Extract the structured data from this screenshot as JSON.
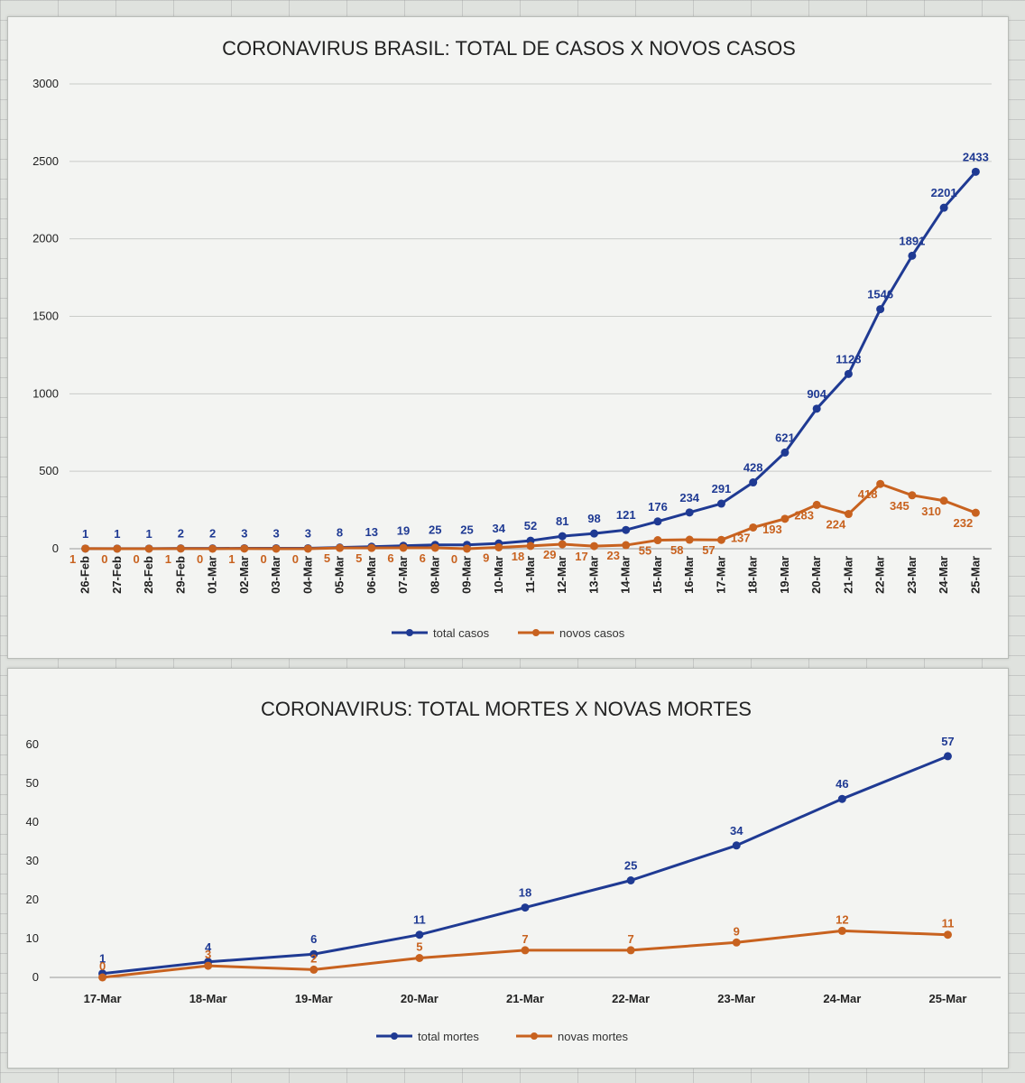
{
  "colors": {
    "total": "#1f3a93",
    "novos": "#c8621f"
  },
  "chart_data": [
    {
      "type": "line",
      "title": "CORONAVIRUS BRASIL: TOTAL DE CASOS X NOVOS CASOS",
      "xlabel": "",
      "ylabel": "",
      "ylim": [
        0,
        3000
      ],
      "yticks": [
        0,
        500,
        1000,
        1500,
        2000,
        2500,
        3000
      ],
      "grid": true,
      "legend_position": "bottom",
      "categories": [
        "26-Feb",
        "27-Feb",
        "28-Feb",
        "29-Feb",
        "01-Mar",
        "02-Mar",
        "03-Mar",
        "04-Mar",
        "05-Mar",
        "06-Mar",
        "07-Mar",
        "08-Mar",
        "09-Mar",
        "10-Mar",
        "11-Mar",
        "12-Mar",
        "13-Mar",
        "14-Mar",
        "15-Mar",
        "16-Mar",
        "17-Mar",
        "18-Mar",
        "19-Mar",
        "20-Mar",
        "21-Mar",
        "22-Mar",
        "23-Mar",
        "24-Mar",
        "25-Mar"
      ],
      "series": [
        {
          "name": "total casos",
          "color": "#1f3a93",
          "values": [
            1,
            1,
            1,
            2,
            2,
            3,
            3,
            3,
            8,
            13,
            19,
            25,
            25,
            34,
            52,
            81,
            98,
            121,
            176,
            234,
            291,
            428,
            621,
            904,
            1128,
            1546,
            1891,
            2201,
            2433
          ]
        },
        {
          "name": "novos casos",
          "color": "#c8621f",
          "values": [
            1,
            0,
            0,
            1,
            0,
            1,
            0,
            0,
            5,
            5,
            6,
            6,
            0,
            9,
            18,
            29,
            17,
            23,
            55,
            58,
            57,
            137,
            193,
            283,
            224,
            418,
            345,
            310,
            232
          ]
        }
      ]
    },
    {
      "type": "line",
      "title": "CORONAVIRUS: TOTAL MORTES X NOVAS MORTES",
      "xlabel": "",
      "ylabel": "",
      "ylim": [
        0,
        60
      ],
      "yticks": [
        0,
        10,
        20,
        30,
        40,
        50,
        60
      ],
      "grid": false,
      "legend_position": "bottom",
      "categories": [
        "17-Mar",
        "18-Mar",
        "19-Mar",
        "20-Mar",
        "21-Mar",
        "22-Mar",
        "23-Mar",
        "24-Mar",
        "25-Mar"
      ],
      "series": [
        {
          "name": "total mortes",
          "color": "#1f3a93",
          "values": [
            1,
            4,
            6,
            11,
            18,
            25,
            34,
            46,
            57
          ]
        },
        {
          "name": "novas mortes",
          "color": "#c8621f",
          "values": [
            0,
            3,
            2,
            5,
            7,
            7,
            9,
            12,
            11
          ]
        }
      ]
    }
  ]
}
